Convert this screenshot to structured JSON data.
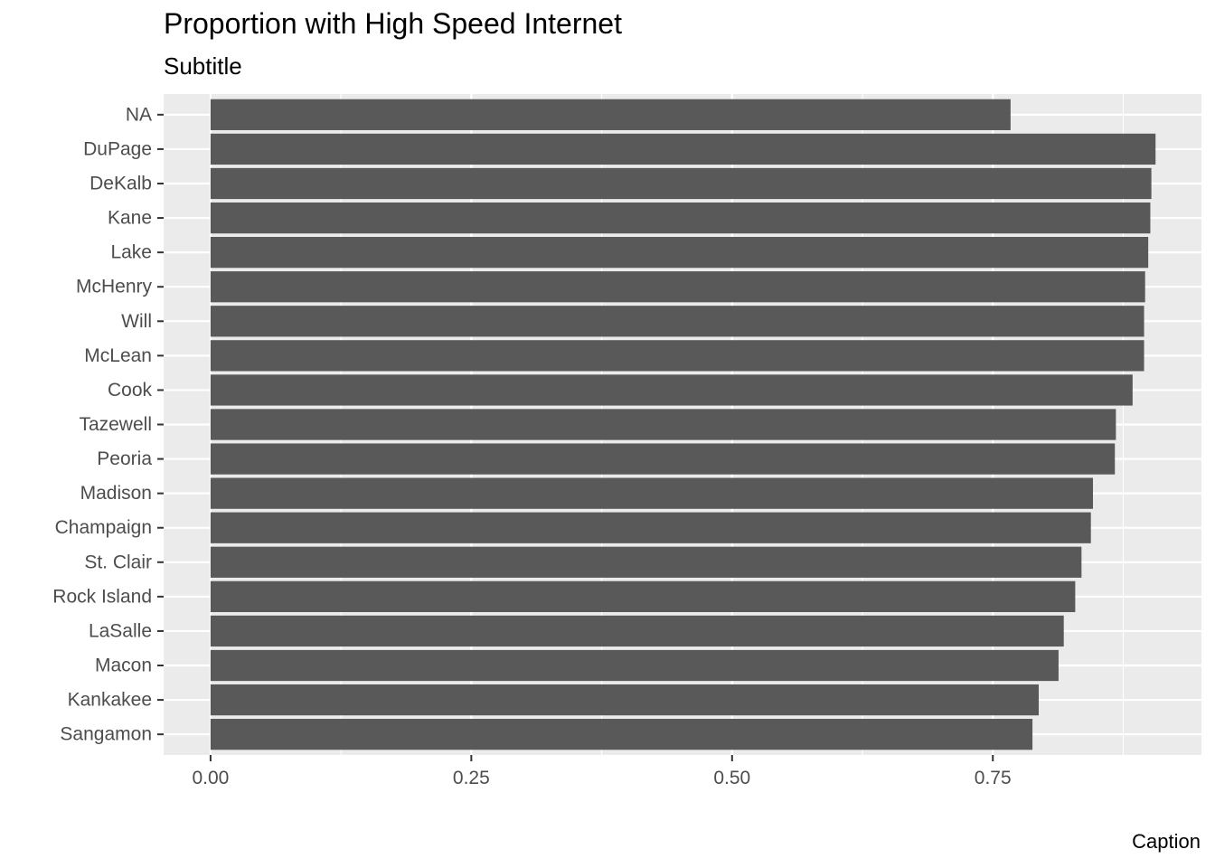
{
  "chart_data": {
    "type": "bar",
    "orientation": "horizontal",
    "title": "Proportion with High Speed Internet",
    "subtitle": "Subtitle",
    "caption": "Caption",
    "xlabel": "",
    "ylabel": "",
    "categories": [
      "NA",
      "DuPage",
      "DeKalb",
      "Kane",
      "Lake",
      "McHenry",
      "Will",
      "McLean",
      "Cook",
      "Tazewell",
      "Peoria",
      "Madison",
      "Champaign",
      "St. Clair",
      "Rock Island",
      "LaSalle",
      "Macon",
      "Kankakee",
      "Sangamon"
    ],
    "values": [
      0.767,
      0.906,
      0.902,
      0.901,
      0.899,
      0.896,
      0.895,
      0.895,
      0.884,
      0.868,
      0.867,
      0.846,
      0.844,
      0.835,
      0.829,
      0.818,
      0.813,
      0.794,
      0.788
    ],
    "xlim": [
      -0.045,
      0.95
    ],
    "xticks": [
      0,
      0.25,
      0.5,
      0.75
    ],
    "xtick_labels": [
      "0.00",
      "0.25",
      "0.50",
      "0.75"
    ],
    "grid": true,
    "legend": "none",
    "colors": {
      "bar": "#595959",
      "panel_background": "#ebebeb",
      "grid_major": "#ffffff",
      "tick_text": "#4d4d4d",
      "tick_mark": "#333333"
    }
  }
}
